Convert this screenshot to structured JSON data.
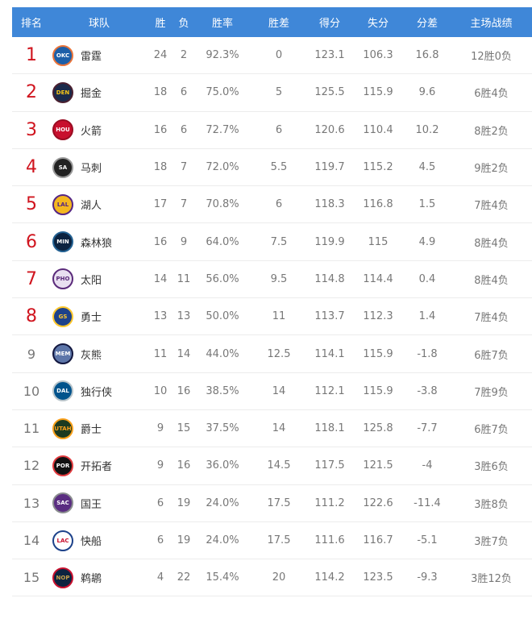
{
  "headers": [
    "排名",
    "球队",
    "胜",
    "负",
    "胜率",
    "胜差",
    "得分",
    "失分",
    "分差",
    "主场战绩"
  ],
  "rows": [
    {
      "rank": "1",
      "abbr": "OKC",
      "team": "雷霆",
      "w": "24",
      "l": "2",
      "pct": "92.3%",
      "gb": "0",
      "pf": "123.1",
      "pa": "106.3",
      "diff": "16.8",
      "home": "12胜0负",
      "bg": "#1d5fa8",
      "ring": "#e9743a",
      "fg": "#fff"
    },
    {
      "rank": "2",
      "abbr": "DEN",
      "team": "掘金",
      "w": "18",
      "l": "6",
      "pct": "75.0%",
      "gb": "5",
      "pf": "125.5",
      "pa": "115.9",
      "diff": "9.6",
      "home": "6胜4负",
      "bg": "#1b2a4a",
      "ring": "#4a2030",
      "fg": "#f5c518"
    },
    {
      "rank": "3",
      "abbr": "HOU",
      "team": "火箭",
      "w": "16",
      "l": "6",
      "pct": "72.7%",
      "gb": "6",
      "pf": "120.6",
      "pa": "110.4",
      "diff": "10.2",
      "home": "8胜2负",
      "bg": "#c8102e",
      "ring": "#9a0c22",
      "fg": "#fff"
    },
    {
      "rank": "4",
      "abbr": "SA",
      "team": "马刺",
      "w": "18",
      "l": "7",
      "pct": "72.0%",
      "gb": "5.5",
      "pf": "119.7",
      "pa": "115.2",
      "diff": "4.5",
      "home": "9胜2负",
      "bg": "#222",
      "ring": "#999",
      "fg": "#fff"
    },
    {
      "rank": "5",
      "abbr": "LAL",
      "team": "湖人",
      "w": "17",
      "l": "7",
      "pct": "70.8%",
      "gb": "6",
      "pf": "118.3",
      "pa": "116.8",
      "diff": "1.5",
      "home": "7胜4负",
      "bg": "#f4b71f",
      "ring": "#552583",
      "fg": "#552583"
    },
    {
      "rank": "6",
      "abbr": "MIN",
      "team": "森林狼",
      "w": "16",
      "l": "9",
      "pct": "64.0%",
      "gb": "7.5",
      "pf": "119.9",
      "pa": "115",
      "diff": "4.9",
      "home": "8胜4负",
      "bg": "#0c2340",
      "ring": "#236192",
      "fg": "#fff"
    },
    {
      "rank": "7",
      "abbr": "PHO",
      "team": "太阳",
      "w": "14",
      "l": "11",
      "pct": "56.0%",
      "gb": "9.5",
      "pf": "114.8",
      "pa": "114.4",
      "diff": "0.4",
      "home": "8胜4负",
      "bg": "#e8dff0",
      "ring": "#5a2a7a",
      "fg": "#5a2a7a"
    },
    {
      "rank": "8",
      "abbr": "GS",
      "team": "勇士",
      "w": "13",
      "l": "13",
      "pct": "50.0%",
      "gb": "11",
      "pf": "113.7",
      "pa": "112.3",
      "diff": "1.4",
      "home": "7胜4负",
      "bg": "#1d428a",
      "ring": "#ffc72c",
      "fg": "#ffc72c"
    },
    {
      "rank": "9",
      "abbr": "MEM",
      "team": "灰熊",
      "w": "11",
      "l": "14",
      "pct": "44.0%",
      "gb": "12.5",
      "pf": "114.1",
      "pa": "115.9",
      "diff": "-1.8",
      "home": "6胜7负",
      "bg": "#5d76a9",
      "ring": "#12173f",
      "fg": "#fff"
    },
    {
      "rank": "10",
      "abbr": "DAL",
      "team": "独行侠",
      "w": "10",
      "l": "16",
      "pct": "38.5%",
      "gb": "14",
      "pf": "112.1",
      "pa": "115.9",
      "diff": "-3.8",
      "home": "7胜9负",
      "bg": "#00538c",
      "ring": "#b8c4ca",
      "fg": "#fff"
    },
    {
      "rank": "11",
      "abbr": "UTAH",
      "team": "爵士",
      "w": "9",
      "l": "15",
      "pct": "37.5%",
      "gb": "14",
      "pf": "118.1",
      "pa": "125.8",
      "diff": "-7.7",
      "home": "6胜7负",
      "bg": "#1c3a20",
      "ring": "#f9a01b",
      "fg": "#f9a01b"
    },
    {
      "rank": "12",
      "abbr": "POR",
      "team": "开拓者",
      "w": "9",
      "l": "16",
      "pct": "36.0%",
      "gb": "14.5",
      "pf": "117.5",
      "pa": "121.5",
      "diff": "-4",
      "home": "3胜6负",
      "bg": "#111",
      "ring": "#e03a3e",
      "fg": "#fff"
    },
    {
      "rank": "13",
      "abbr": "SAC",
      "team": "国王",
      "w": "6",
      "l": "19",
      "pct": "24.0%",
      "gb": "17.5",
      "pf": "111.2",
      "pa": "122.6",
      "diff": "-11.4",
      "home": "3胜8负",
      "bg": "#5a2d81",
      "ring": "#8a8d8f",
      "fg": "#fff"
    },
    {
      "rank": "14",
      "abbr": "LAC",
      "team": "快船",
      "w": "6",
      "l": "19",
      "pct": "24.0%",
      "gb": "17.5",
      "pf": "111.6",
      "pa": "116.7",
      "diff": "-5.1",
      "home": "3胜7负",
      "bg": "#fff",
      "ring": "#1d428a",
      "fg": "#c8102e"
    },
    {
      "rank": "15",
      "abbr": "NOP",
      "team": "鹈鹕",
      "w": "4",
      "l": "22",
      "pct": "15.4%",
      "gb": "20",
      "pf": "114.2",
      "pa": "123.5",
      "diff": "-9.3",
      "home": "3胜12负",
      "bg": "#0c2340",
      "ring": "#c8102e",
      "fg": "#c8a24a"
    }
  ],
  "colors": {
    "header": "#3f87d8",
    "top_rank": "#d0141e"
  }
}
